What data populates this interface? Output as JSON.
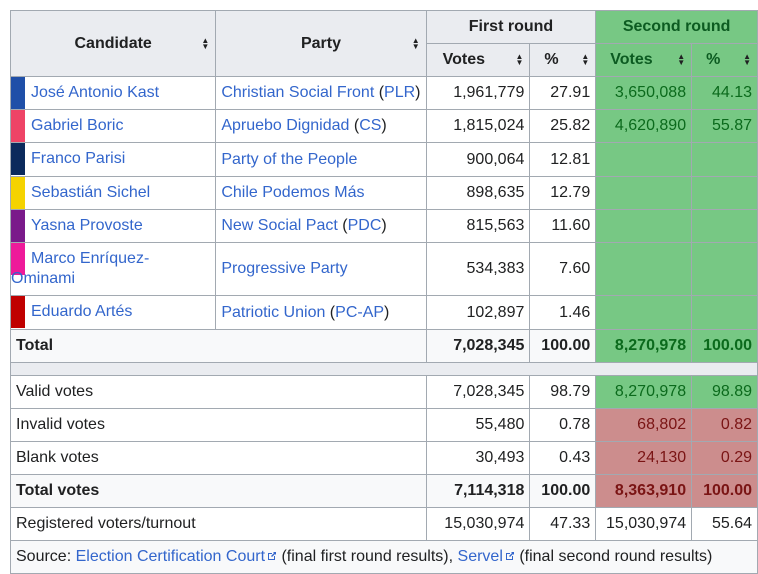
{
  "header": {
    "candidate": "Candidate",
    "party": "Party",
    "first_round": "First round",
    "second_round": "Second round",
    "votes": "Votes",
    "pct": "%"
  },
  "candidates": [
    {
      "name": "José Antonio Kast",
      "color": "#1f4fa8",
      "party": "Christian Social Front",
      "abbr": "PLR",
      "v1": "1,961,779",
      "p1": "27.91",
      "v2": "3,650,088",
      "p2": "44.13"
    },
    {
      "name": "Gabriel Boric",
      "color": "#ee4466",
      "party": "Apruebo Dignidad",
      "abbr": "CS",
      "v1": "1,815,024",
      "p1": "25.82",
      "v2": "4,620,890",
      "p2": "55.87"
    },
    {
      "name": "Franco Parisi",
      "color": "#0b2a5c",
      "party": "Party of the People",
      "abbr": "",
      "v1": "900,064",
      "p1": "12.81",
      "v2": "",
      "p2": ""
    },
    {
      "name": "Sebastián Sichel",
      "color": "#f5d300",
      "party": "Chile Podemos Más",
      "abbr": "",
      "v1": "898,635",
      "p1": "12.79",
      "v2": "",
      "p2": ""
    },
    {
      "name": "Yasna Provoste",
      "color": "#7a1a8a",
      "party": "New Social Pact",
      "abbr": "PDC",
      "v1": "815,563",
      "p1": "11.60",
      "v2": "",
      "p2": ""
    },
    {
      "name": "Marco Enríquez-Ominami",
      "color": "#ee1a9a",
      "party": "Progressive Party",
      "abbr": "",
      "v1": "534,383",
      "p1": "7.60",
      "v2": "",
      "p2": ""
    },
    {
      "name": "Eduardo Artés",
      "color": "#c00000",
      "party": "Patriotic Union",
      "abbr": "PC-AP",
      "v1": "102,897",
      "p1": "1.46",
      "v2": "",
      "p2": ""
    }
  ],
  "total": {
    "label": "Total",
    "v1": "7,028,345",
    "p1": "100.00",
    "v2": "8,270,978",
    "p2": "100.00"
  },
  "valid": {
    "label": "Valid votes",
    "v1": "7,028,345",
    "p1": "98.79",
    "v2": "8,270,978",
    "p2": "98.89"
  },
  "invalid": {
    "label": "Invalid votes",
    "v1": "55,480",
    "p1": "0.78",
    "v2": "68,802",
    "p2": "0.82"
  },
  "blank": {
    "label": "Blank votes",
    "v1": "30,493",
    "p1": "0.43",
    "v2": "24,130",
    "p2": "0.29"
  },
  "total_votes": {
    "label": "Total votes",
    "v1": "7,114,318",
    "p1": "100.00",
    "v2": "8,363,910",
    "p2": "100.00"
  },
  "registered": {
    "label": "Registered voters/turnout",
    "v1": "15,030,974",
    "p1": "47.33",
    "v2": "15,030,974",
    "p2": "55.64"
  },
  "source": {
    "prefix": "Source: ",
    "link1": "Election Certification Court",
    "mid": " (final first round results), ",
    "link2": "Servel",
    "suffix": " (final second round results)"
  }
}
